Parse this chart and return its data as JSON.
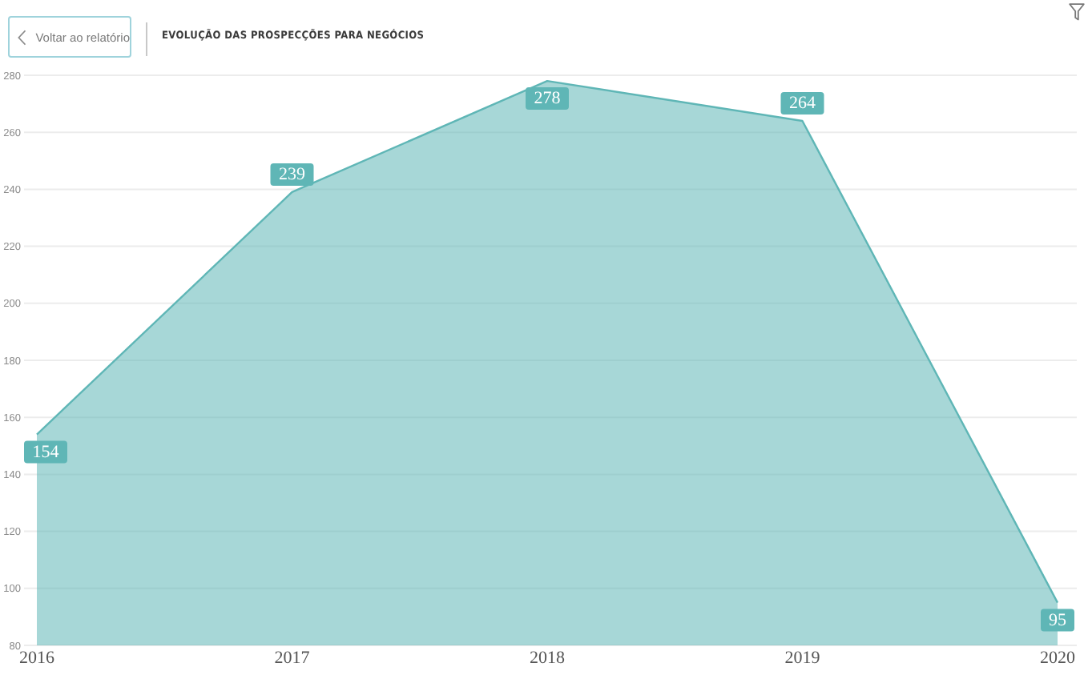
{
  "chart_data": {
    "type": "area",
    "title": "EVOLUÇÃO DAS PROSPECÇÕES PARA NEGÓCIOS",
    "annotations": [
      "Voltar ao relatório"
    ],
    "categories": [
      "2016",
      "2017",
      "2018",
      "2019",
      "2020"
    ],
    "values": [
      154,
      239,
      278,
      264,
      95
    ],
    "color": "#5fb6b6",
    "ylim": [
      80,
      280
    ],
    "yticks": [
      80,
      100,
      120,
      140,
      160,
      180,
      200,
      220,
      240,
      260,
      280
    ],
    "grid": "y",
    "data_labels": true
  }
}
